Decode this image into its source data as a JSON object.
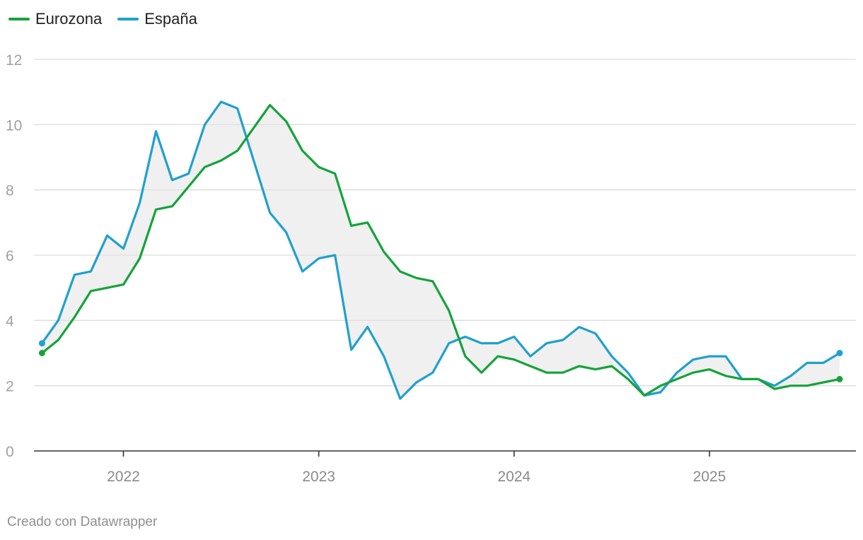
{
  "colors": {
    "eurozona": "#14a33a",
    "espana": "#1fa0cf",
    "fill": "#e2e2e2",
    "grid": "#dcdcdc",
    "axis": "#333333"
  },
  "footer": {
    "credit": "Creado con Datawrapper"
  },
  "chart_data": {
    "type": "line",
    "title": "",
    "xlabel": "",
    "ylabel": "",
    "ylim": [
      0,
      12
    ],
    "yticks": [
      0,
      2,
      4,
      6,
      8,
      10,
      12
    ],
    "xticks": [
      {
        "label": "2022",
        "value": 2022.0
      },
      {
        "label": "2023",
        "value": 2023.0
      },
      {
        "label": "2024",
        "value": 2024.0
      },
      {
        "label": "2025",
        "value": 2025.0
      }
    ],
    "xlim": [
      2021.542,
      2025.75
    ],
    "start": {
      "year": 2021,
      "month": 8
    },
    "grid": true,
    "legend_position": "top-left",
    "shade_between_series": true,
    "series": [
      {
        "key": "eurozona",
        "name": "Eurozona",
        "values": [
          3.0,
          3.4,
          4.1,
          4.9,
          5.0,
          5.1,
          5.9,
          7.4,
          7.5,
          8.1,
          8.7,
          8.9,
          9.2,
          9.9,
          10.6,
          10.1,
          9.2,
          8.7,
          8.5,
          6.9,
          7.0,
          6.1,
          5.5,
          5.3,
          5.2,
          4.3,
          2.9,
          2.4,
          2.9,
          2.8,
          2.6,
          2.4,
          2.4,
          2.6,
          2.5,
          2.6,
          2.2,
          1.7,
          2.0,
          2.2,
          2.4,
          2.5,
          2.3,
          2.2,
          2.2,
          1.9,
          2.0,
          2.0,
          2.1,
          2.2
        ]
      },
      {
        "key": "espana",
        "name": "España",
        "values": [
          3.3,
          4.0,
          5.4,
          5.5,
          6.6,
          6.2,
          7.6,
          9.8,
          8.3,
          8.5,
          10.0,
          10.7,
          10.5,
          8.9,
          7.3,
          6.7,
          5.5,
          5.9,
          6.0,
          3.1,
          3.8,
          2.9,
          1.6,
          2.1,
          2.4,
          3.3,
          3.5,
          3.3,
          3.3,
          3.5,
          2.9,
          3.3,
          3.4,
          3.8,
          3.6,
          2.9,
          2.4,
          1.7,
          1.8,
          2.4,
          2.8,
          2.9,
          2.9,
          2.2,
          2.2,
          2.0,
          2.3,
          2.7,
          2.7,
          3.0
        ]
      }
    ]
  }
}
